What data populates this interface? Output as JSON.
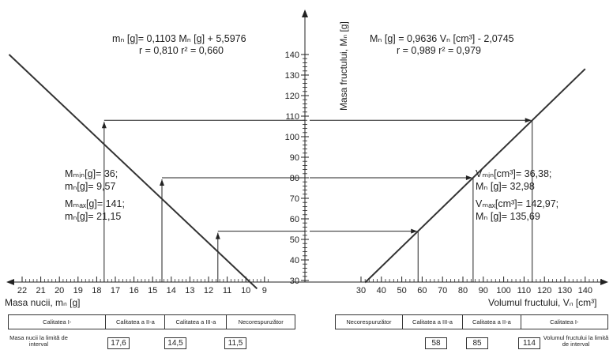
{
  "top_caption": "[mₙmin = 9,57 ... ; Vₘmax = 142,97 ...]",
  "left_equation": {
    "line1": "mₙ [g]= 0,1103 Mₙ [g] + 5,5976",
    "line2": "r = 0,810   r² = 0,660"
  },
  "right_equation": {
    "line1": "Mₙ [g] = 0,9636 Vₙ [cm³] - 2,0745",
    "line2": "r = 0,989   r² = 0,979"
  },
  "left_info": {
    "l1": "Mₘᵢₙ[g]= 36;",
    "l2": "mₙ[g]= 9,57",
    "l3": "Mₘₐₓ[g]= 141;",
    "l4": "mₙ[g]= 21,15"
  },
  "right_info": {
    "l1": "Vₘᵢₙ[cm³]= 36,38;",
    "l2": "Mₙ [g]= 32,98",
    "l3": "Vₘₐₓ[cm³]= 142,97;",
    "l4": "Mₙ [g]= 135,69"
  },
  "axes": {
    "left_x_label": "Masa nucii, mₙ [g]",
    "right_x_label": "Volumul fructului, Vₙ [cm³]",
    "y_label": "Masa fructului, Mₙ [g]",
    "left_x_ticks": [
      "22",
      "21",
      "20",
      "19",
      "18",
      "17",
      "16",
      "15",
      "14",
      "13",
      "12",
      "11",
      "10",
      "9"
    ],
    "right_x_ticks": [
      "30",
      "40",
      "50",
      "60",
      "70",
      "80",
      "90",
      "100",
      "110",
      "120",
      "130",
      "140"
    ],
    "y_ticks": [
      "30",
      "40",
      "50",
      "60",
      "70",
      "80",
      "90",
      "100",
      "110",
      "120",
      "130",
      "140"
    ]
  },
  "chart_data": {
    "type": "line",
    "series": [
      {
        "name": "",
        "x_quantity": "m_N [g]",
        "y_quantity": "M_F [g]",
        "x": [
          22.7,
          9.4
        ],
        "y": [
          140,
          26
        ]
      },
      {
        "name": "",
        "x_quantity": "V_F [cm3]",
        "y_quantity": "M_F [g]",
        "x": [
          32,
          140
        ],
        "y": [
          29,
          133
        ]
      }
    ],
    "guides": [
      {
        "x": 17.6,
        "y": 108,
        "x2": 114
      },
      {
        "x": 14.5,
        "y": 80,
        "x2": 85
      },
      {
        "x": 11.5,
        "y": 54,
        "x2": 58
      }
    ],
    "left_xlim": [
      22,
      9
    ],
    "right_xlim": [
      30,
      140
    ],
    "ylim": [
      30,
      140
    ]
  },
  "left_table": {
    "cells": [
      "Calitatea I-",
      "Calitatea a II-a",
      "Calitatea a III-a",
      "Necorespunzător"
    ],
    "caption": "Masa nucii la limită de interval",
    "limits": [
      "17,6",
      "14,5",
      "11,5"
    ]
  },
  "right_table": {
    "cells": [
      "Necorespunzător",
      "Calitatea a III-a",
      "Calitatea a II-a",
      "Calitatea I-"
    ],
    "caption": "Volumul fructului la limită de interval",
    "limits": [
      "58",
      "85",
      "114"
    ]
  }
}
